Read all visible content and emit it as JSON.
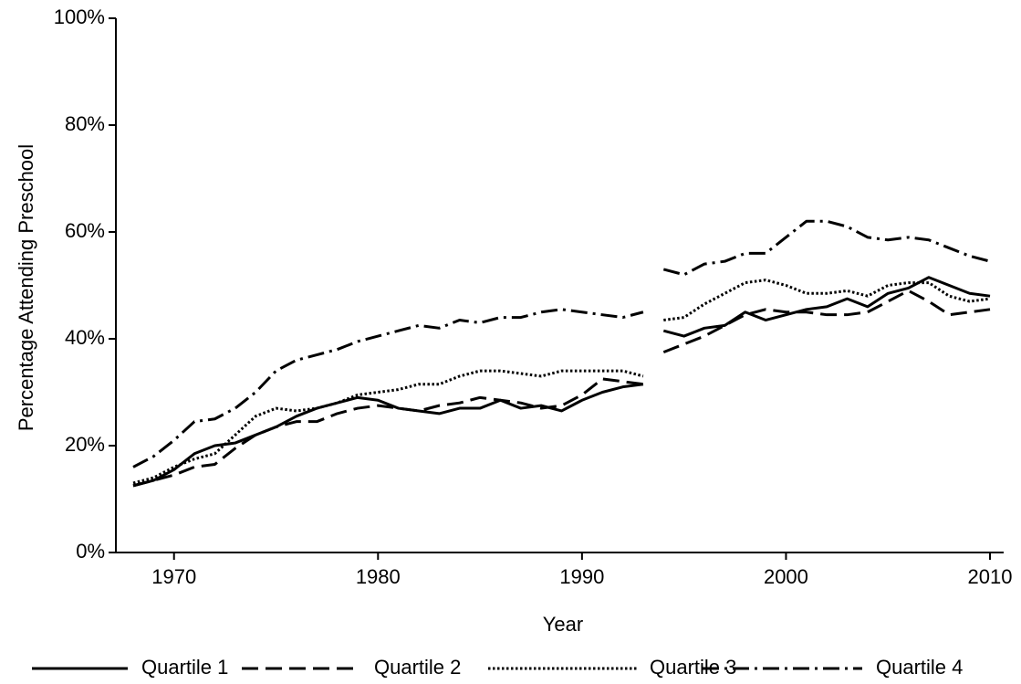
{
  "chart_data": {
    "type": "line",
    "x_label": "Year",
    "y_label": "Percentage Attending Preschool",
    "x": [
      1968,
      1969,
      1970,
      1971,
      1972,
      1973,
      1974,
      1975,
      1976,
      1977,
      1978,
      1979,
      1980,
      1981,
      1982,
      1983,
      1984,
      1985,
      1986,
      1987,
      1988,
      1989,
      1990,
      1991,
      1992,
      1993,
      null,
      1994,
      1995,
      1996,
      1997,
      1998,
      1999,
      2000,
      2001,
      2002,
      2003,
      2004,
      2005,
      2006,
      2007,
      2008,
      2009,
      2010
    ],
    "series": [
      {
        "name": "Quartile 1",
        "color": "#000000",
        "dash": "solid",
        "values": [
          12.5,
          13.5,
          15.5,
          18.5,
          20,
          20.5,
          22,
          23.5,
          25.5,
          27,
          28,
          29,
          28.5,
          27,
          26.5,
          26,
          27,
          27,
          28.5,
          27,
          27.5,
          26.5,
          28.5,
          30,
          31,
          31.5,
          null,
          41.5,
          40.5,
          42,
          42.5,
          45,
          43.5,
          44.5,
          45.5,
          46,
          47.5,
          46,
          48.5,
          49.5,
          51.5,
          50,
          48.5,
          48
        ]
      },
      {
        "name": "Quartile 2",
        "color": "#000000",
        "dash": "dashed",
        "values": [
          12.5,
          13.5,
          14.5,
          16,
          16.5,
          19.5,
          22,
          23.5,
          24.5,
          24.5,
          26,
          27,
          27.5,
          27,
          26.5,
          27.5,
          28,
          29,
          28.5,
          28,
          27,
          27.5,
          29.5,
          32.5,
          32,
          31.5,
          null,
          37.5,
          39,
          40.5,
          42.5,
          44.5,
          45.5,
          45,
          45,
          44.5,
          44.5,
          45,
          47,
          49,
          47,
          44.5,
          45,
          45.5
        ]
      },
      {
        "name": "Quartile 3",
        "color": "#000000",
        "dash": "dotted",
        "values": [
          13,
          14,
          16,
          17.5,
          18.5,
          22,
          25.5,
          27,
          26.5,
          27,
          28,
          29.5,
          30,
          30.5,
          31.5,
          31.5,
          33,
          34,
          34,
          33.5,
          33,
          34,
          34,
          34,
          34,
          33,
          null,
          43.5,
          44,
          46.5,
          48.5,
          50.5,
          51,
          50,
          48.5,
          48.5,
          49,
          48,
          50,
          50.5,
          50.5,
          48,
          47,
          47.5
        ]
      },
      {
        "name": "Quartile 4",
        "color": "#000000",
        "dash": "dashdot",
        "values": [
          16,
          18,
          21,
          24.5,
          25,
          27,
          30,
          34,
          36,
          37,
          38,
          39.5,
          40.5,
          41.5,
          42.5,
          42,
          43.5,
          43,
          44,
          44,
          45,
          45.5,
          45,
          44.5,
          44,
          45,
          null,
          53,
          52,
          54,
          54.5,
          56,
          56,
          59,
          62,
          62,
          61,
          59,
          58.5,
          59,
          58.5,
          57,
          55.5,
          54.5
        ]
      }
    ],
    "xlim": [
      1967.15,
      2010.67
    ],
    "xticks": [
      1970,
      1980,
      1990,
      2000,
      2010
    ],
    "ylim": [
      0,
      100
    ],
    "yticks": [
      {
        "value": 0,
        "label": "0%"
      },
      {
        "value": 20,
        "label": "20%"
      },
      {
        "value": 40,
        "label": "40%"
      },
      {
        "value": 60,
        "label": "60%"
      },
      {
        "value": 80,
        "label": "80%"
      },
      {
        "value": 100,
        "label": "100%"
      }
    ],
    "legend": "bottom"
  }
}
